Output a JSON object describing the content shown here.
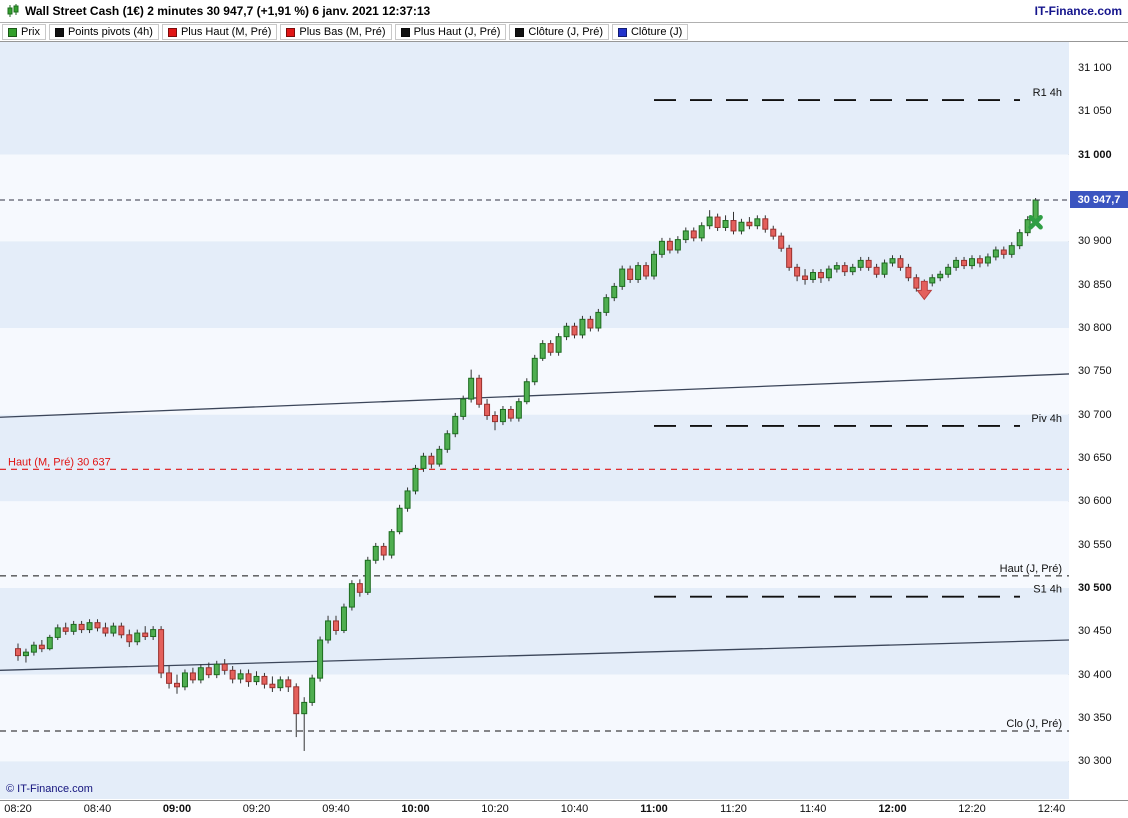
{
  "header": {
    "title": "Wall Street Cash (1€) 2 minutes 30 947,7 (+1,91 %) 6 janv. 2021 12:37:13",
    "brand": "IT-Finance.com"
  },
  "legend": {
    "items": [
      {
        "label": "Prix",
        "color": "#33a02c"
      },
      {
        "label": "Points pivots (4h)",
        "color": "#111111"
      },
      {
        "label": "Plus Haut (M, Pré)",
        "color": "#e01515"
      },
      {
        "label": "Plus Bas (M, Pré)",
        "color": "#e01515"
      },
      {
        "label": "Plus Haut (J, Pré)",
        "color": "#111111"
      },
      {
        "label": "Clôture (J, Pré)",
        "color": "#111111"
      },
      {
        "label": "Clôture (J)",
        "color": "#2233cc"
      }
    ]
  },
  "footer": {
    "copyright": "© IT-Finance.com"
  },
  "chart_data": {
    "type": "candlestick",
    "instrument": "Wall Street Cash (1€)",
    "timeframe": "2 minutes",
    "last_price_label": "30 947,7",
    "change_pct": "+1,91 %",
    "datetime": "6 janv. 2021 12:37:13",
    "start_time": "08:20",
    "interval_minutes": 2,
    "ylim": [
      30256,
      31130
    ],
    "band_colors": [
      "#e4edf9",
      "#f6f9fe"
    ],
    "candle_colors": {
      "up_fill": "#4fae50",
      "up_stroke": "#1c6b1e",
      "down_fill": "#e4605c",
      "down_stroke": "#99312e",
      "wick": "#333333"
    },
    "x_ticks": [
      {
        "label": "08:20",
        "minutes": 0,
        "bold": false
      },
      {
        "label": "08:40",
        "minutes": 20,
        "bold": false
      },
      {
        "label": "09:00",
        "minutes": 40,
        "bold": true
      },
      {
        "label": "09:20",
        "minutes": 60,
        "bold": false
      },
      {
        "label": "09:40",
        "minutes": 80,
        "bold": false
      },
      {
        "label": "10:00",
        "minutes": 100,
        "bold": true
      },
      {
        "label": "10:20",
        "minutes": 120,
        "bold": false
      },
      {
        "label": "10:40",
        "minutes": 140,
        "bold": false
      },
      {
        "label": "11:00",
        "minutes": 160,
        "bold": true
      },
      {
        "label": "11:20",
        "minutes": 180,
        "bold": false
      },
      {
        "label": "11:40",
        "minutes": 200,
        "bold": false
      },
      {
        "label": "12:00",
        "minutes": 220,
        "bold": true
      },
      {
        "label": "12:20",
        "minutes": 240,
        "bold": false
      },
      {
        "label": "12:40",
        "minutes": 260,
        "bold": false
      }
    ],
    "y_ticks": [
      {
        "value": 31100,
        "label": "31 100",
        "bold": false
      },
      {
        "value": 31050,
        "label": "31 050",
        "bold": false
      },
      {
        "value": 31000,
        "label": "31 000",
        "bold": true
      },
      {
        "value": 30900,
        "label": "30 900",
        "bold": false
      },
      {
        "value": 30850,
        "label": "30 850",
        "bold": false
      },
      {
        "value": 30800,
        "label": "30 800",
        "bold": false
      },
      {
        "value": 30750,
        "label": "30 750",
        "bold": false
      },
      {
        "value": 30700,
        "label": "30 700",
        "bold": false
      },
      {
        "value": 30650,
        "label": "30 650",
        "bold": false
      },
      {
        "value": 30600,
        "label": "30 600",
        "bold": false
      },
      {
        "value": 30550,
        "label": "30 550",
        "bold": false
      },
      {
        "value": 30500,
        "label": "30 500",
        "bold": true
      },
      {
        "value": 30450,
        "label": "30 450",
        "bold": false
      },
      {
        "value": 30400,
        "label": "30 400",
        "bold": false
      },
      {
        "value": 30350,
        "label": "30 350",
        "bold": false
      },
      {
        "value": 30300,
        "label": "30 300",
        "bold": false
      }
    ],
    "price_marker": {
      "value": 30947.7,
      "label": "30 947,7",
      "color": "#3b55c0",
      "line_color": "#333344"
    },
    "levels": [
      {
        "name": "R1 4h",
        "price": 31063,
        "color": "#111111",
        "span": "pivot",
        "label_side": "right"
      },
      {
        "name": "Piv 4h",
        "price": 30687,
        "color": "#111111",
        "span": "pivot",
        "label_side": "right"
      },
      {
        "name": "S1 4h",
        "price": 30490,
        "color": "#111111",
        "span": "pivot",
        "label_side": "right"
      },
      {
        "name": "Haut (J, Pré)",
        "price": 30514,
        "color": "#111111",
        "span": "full",
        "label_side": "right"
      },
      {
        "name": "Clo (J, Pré)",
        "price": 30335,
        "color": "#111111",
        "span": "full",
        "label_side": "right"
      },
      {
        "name": "Haut (M, Pré) 30 637",
        "price": 30637,
        "color": "#e01515",
        "span": "full",
        "label_side": "left"
      }
    ],
    "trendlines": [
      {
        "price_left": 30697,
        "price_right": 30747,
        "color": "#3c465a"
      },
      {
        "price_left": 30405,
        "price_right": 30440,
        "color": "#3c465a"
      }
    ],
    "markers": [
      {
        "type": "down-arrow",
        "index": 114,
        "price": 30833,
        "color": "#e4605c",
        "stroke": "#b84040"
      },
      {
        "type": "cross",
        "index": 128,
        "price": 30922,
        "color": "#2f9e44"
      }
    ],
    "candles": [
      [
        30430,
        30436,
        30416,
        30422
      ],
      [
        30422,
        30430,
        30414,
        30426
      ],
      [
        30426,
        30438,
        30422,
        30434
      ],
      [
        30434,
        30440,
        30426,
        30430
      ],
      [
        30430,
        30446,
        30428,
        30443
      ],
      [
        30443,
        30458,
        30440,
        30454
      ],
      [
        30454,
        30460,
        30446,
        30450
      ],
      [
        30450,
        30462,
        30446,
        30458
      ],
      [
        30458,
        30462,
        30448,
        30452
      ],
      [
        30452,
        30464,
        30448,
        30460
      ],
      [
        30460,
        30464,
        30450,
        30454
      ],
      [
        30454,
        30460,
        30444,
        30448
      ],
      [
        30448,
        30460,
        30444,
        30456
      ],
      [
        30456,
        30460,
        30442,
        30446
      ],
      [
        30446,
        30452,
        30432,
        30438
      ],
      [
        30438,
        30452,
        30434,
        30448
      ],
      [
        30448,
        30456,
        30440,
        30444
      ],
      [
        30444,
        30456,
        30440,
        30452
      ],
      [
        30452,
        30456,
        30396,
        30402
      ],
      [
        30402,
        30410,
        30384,
        30390
      ],
      [
        30390,
        30400,
        30378,
        30386
      ],
      [
        30386,
        30406,
        30382,
        30402
      ],
      [
        30402,
        30408,
        30390,
        30394
      ],
      [
        30394,
        30412,
        30390,
        30408
      ],
      [
        30408,
        30414,
        30396,
        30400
      ],
      [
        30400,
        30416,
        30396,
        30412
      ],
      [
        30412,
        30418,
        30400,
        30405
      ],
      [
        30405,
        30410,
        30390,
        30395
      ],
      [
        30395,
        30406,
        30390,
        30401
      ],
      [
        30401,
        30406,
        30386,
        30392
      ],
      [
        30392,
        30404,
        30388,
        30398
      ],
      [
        30398,
        30402,
        30384,
        30389
      ],
      [
        30389,
        30398,
        30380,
        30385
      ],
      [
        30385,
        30398,
        30381,
        30394
      ],
      [
        30394,
        30398,
        30380,
        30386
      ],
      [
        30386,
        30390,
        30328,
        30355
      ],
      [
        30355,
        30374,
        30312,
        30368
      ],
      [
        30368,
        30400,
        30364,
        30396
      ],
      [
        30396,
        30444,
        30392,
        30440
      ],
      [
        30440,
        30468,
        30436,
        30462
      ],
      [
        30462,
        30468,
        30446,
        30451
      ],
      [
        30451,
        30482,
        30448,
        30478
      ],
      [
        30478,
        30509,
        30474,
        30505
      ],
      [
        30505,
        30510,
        30490,
        30495
      ],
      [
        30495,
        30536,
        30492,
        30532
      ],
      [
        30532,
        30552,
        30528,
        30548
      ],
      [
        30548,
        30552,
        30532,
        30538
      ],
      [
        30538,
        30568,
        30534,
        30565
      ],
      [
        30565,
        30596,
        30562,
        30592
      ],
      [
        30592,
        30616,
        30588,
        30612
      ],
      [
        30612,
        30642,
        30608,
        30638
      ],
      [
        30638,
        30656,
        30634,
        30652
      ],
      [
        30652,
        30656,
        30638,
        30643
      ],
      [
        30643,
        30664,
        30640,
        30660
      ],
      [
        30660,
        30682,
        30656,
        30678
      ],
      [
        30678,
        30702,
        30674,
        30698
      ],
      [
        30698,
        30722,
        30694,
        30718
      ],
      [
        30718,
        30752,
        30714,
        30742
      ],
      [
        30742,
        30746,
        30708,
        30712
      ],
      [
        30712,
        30718,
        30694,
        30699
      ],
      [
        30699,
        30704,
        30682,
        30692
      ],
      [
        30692,
        30710,
        30688,
        30706
      ],
      [
        30706,
        30710,
        30692,
        30696
      ],
      [
        30696,
        30719,
        30692,
        30715
      ],
      [
        30715,
        30742,
        30712,
        30738
      ],
      [
        30738,
        30769,
        30734,
        30765
      ],
      [
        30765,
        30786,
        30762,
        30782
      ],
      [
        30782,
        30786,
        30768,
        30772
      ],
      [
        30772,
        30794,
        30768,
        30790
      ],
      [
        30790,
        30806,
        30786,
        30802
      ],
      [
        30802,
        30806,
        30788,
        30792
      ],
      [
        30792,
        30814,
        30788,
        30810
      ],
      [
        30810,
        30814,
        30796,
        30800
      ],
      [
        30800,
        30822,
        30796,
        30818
      ],
      [
        30818,
        30839,
        30814,
        30835
      ],
      [
        30835,
        30852,
        30831,
        30848
      ],
      [
        30848,
        30872,
        30844,
        30868
      ],
      [
        30868,
        30872,
        30852,
        30856
      ],
      [
        30856,
        30876,
        30852,
        30872
      ],
      [
        30872,
        30876,
        30856,
        30860
      ],
      [
        30860,
        30889,
        30856,
        30885
      ],
      [
        30885,
        30904,
        30881,
        30900
      ],
      [
        30900,
        30904,
        30886,
        30890
      ],
      [
        30890,
        30906,
        30886,
        30902
      ],
      [
        30902,
        30916,
        30898,
        30912
      ],
      [
        30912,
        30916,
        30900,
        30904
      ],
      [
        30904,
        30922,
        30900,
        30918
      ],
      [
        30918,
        30936,
        30914,
        30928
      ],
      [
        30928,
        30932,
        30912,
        30916
      ],
      [
        30916,
        30930,
        30912,
        30924
      ],
      [
        30924,
        30934,
        30908,
        30912
      ],
      [
        30912,
        30926,
        30908,
        30922
      ],
      [
        30922,
        30928,
        30914,
        30918
      ],
      [
        30918,
        30930,
        30914,
        30926
      ],
      [
        30926,
        30930,
        30910,
        30914
      ],
      [
        30914,
        30918,
        30902,
        30906
      ],
      [
        30906,
        30910,
        30888,
        30892
      ],
      [
        30892,
        30896,
        30866,
        30870
      ],
      [
        30870,
        30874,
        30854,
        30860
      ],
      [
        30860,
        30868,
        30850,
        30856
      ],
      [
        30856,
        30868,
        30852,
        30864
      ],
      [
        30864,
        30868,
        30852,
        30858
      ],
      [
        30858,
        30872,
        30854,
        30868
      ],
      [
        30868,
        30876,
        30864,
        30872
      ],
      [
        30872,
        30876,
        30860,
        30865
      ],
      [
        30865,
        30874,
        30861,
        30870
      ],
      [
        30870,
        30882,
        30866,
        30878
      ],
      [
        30878,
        30882,
        30866,
        30870
      ],
      [
        30870,
        30874,
        30858,
        30862
      ],
      [
        30862,
        30879,
        30858,
        30875
      ],
      [
        30875,
        30884,
        30871,
        30880
      ],
      [
        30880,
        30884,
        30866,
        30870
      ],
      [
        30870,
        30874,
        30854,
        30858
      ],
      [
        30858,
        30862,
        30842,
        30846
      ],
      [
        30846,
        30856,
        30838,
        30852
      ],
      [
        30852,
        30862,
        30848,
        30858
      ],
      [
        30858,
        30866,
        30854,
        30862
      ],
      [
        30862,
        30874,
        30858,
        30870
      ],
      [
        30870,
        30882,
        30866,
        30878
      ],
      [
        30878,
        30882,
        30868,
        30872
      ],
      [
        30872,
        30884,
        30868,
        30880
      ],
      [
        30880,
        30884,
        30870,
        30875
      ],
      [
        30875,
        30886,
        30871,
        30882
      ],
      [
        30882,
        30894,
        30878,
        30890
      ],
      [
        30890,
        30894,
        30880,
        30885
      ],
      [
        30885,
        30899,
        30881,
        30895
      ],
      [
        30895,
        30914,
        30891,
        30910
      ],
      [
        30910,
        30929,
        30906,
        30925
      ],
      [
        30925,
        30950,
        30921,
        30947.7
      ]
    ]
  }
}
